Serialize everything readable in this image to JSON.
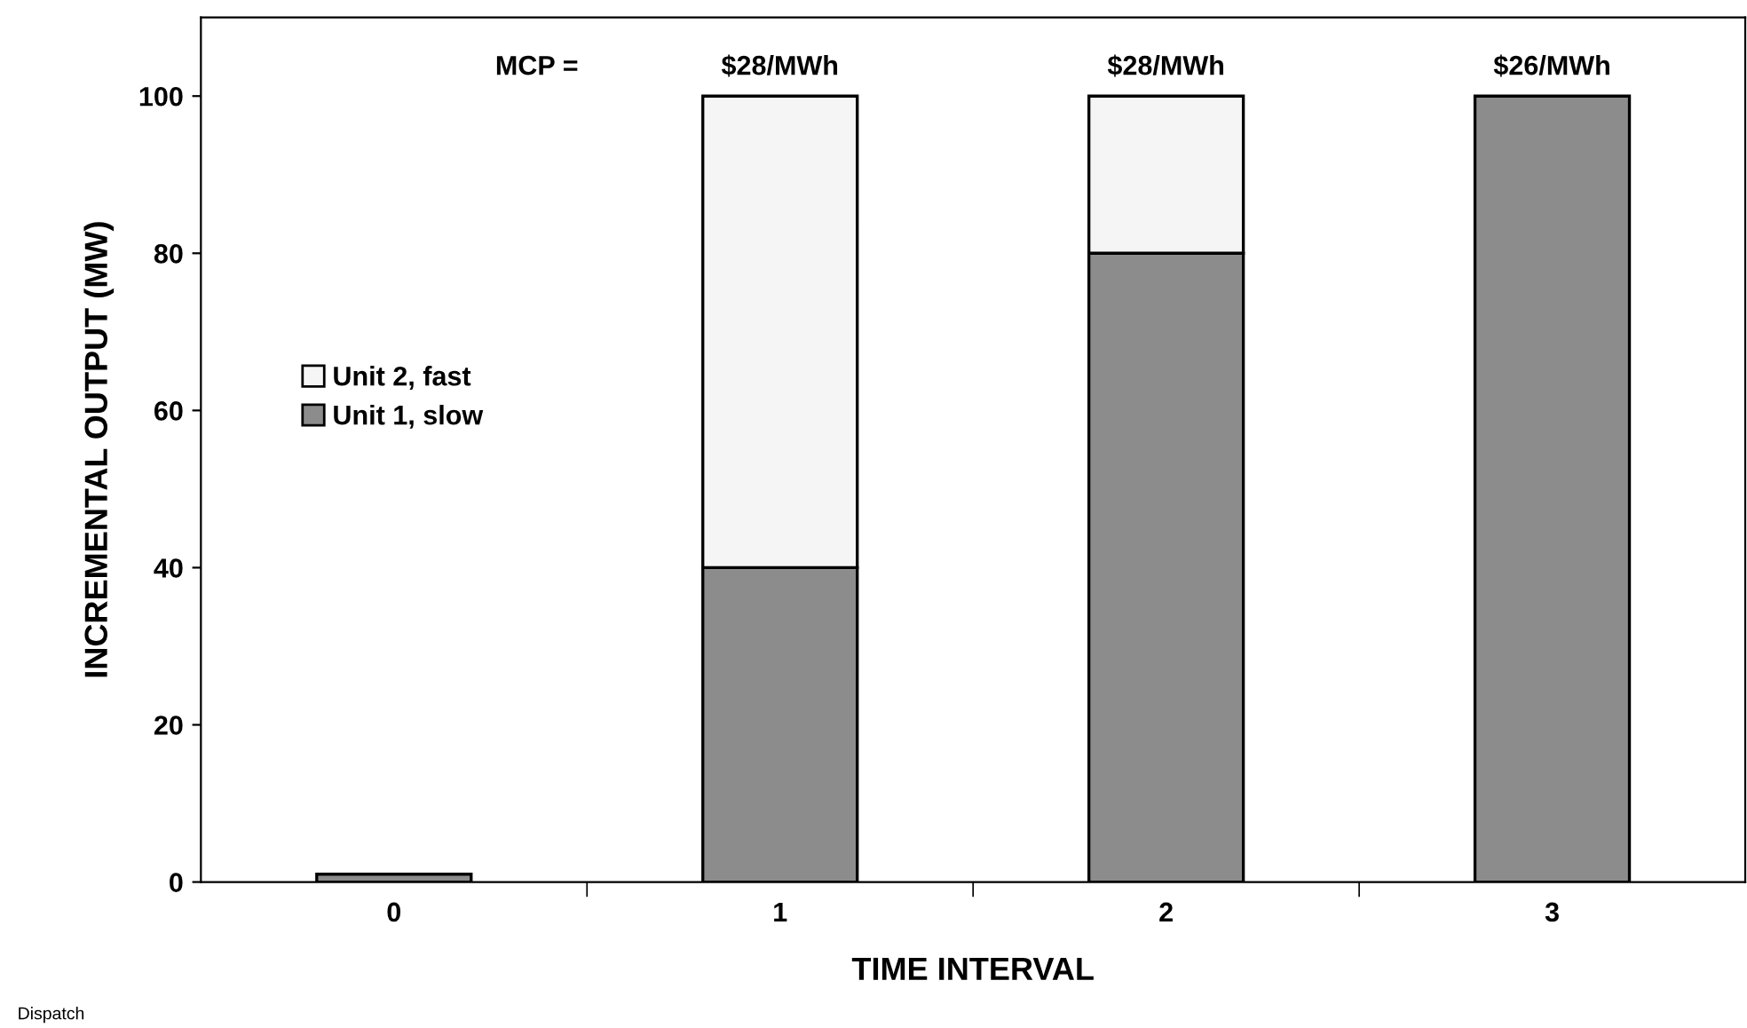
{
  "chart_data": {
    "type": "bar",
    "stacked": true,
    "xlabel": "TIME INTERVAL",
    "ylabel": "INCREMENTAL OUTPUT (MW)",
    "categories": [
      "0",
      "1",
      "2",
      "3"
    ],
    "series": [
      {
        "name": "Unit 1, slow",
        "color": "#8c8c8c",
        "values": [
          1,
          40,
          80,
          100
        ]
      },
      {
        "name": "Unit 2, fast",
        "color": "#f5f5f5",
        "values": [
          null,
          60,
          20,
          null
        ]
      }
    ],
    "ylim": [
      0,
      110
    ],
    "yticks": [
      0,
      20,
      40,
      60,
      80,
      100
    ],
    "grid": false,
    "legend": "left",
    "annotations": [
      "MCP =",
      {
        "text": "$28/MWh",
        "x": "1",
        "y": 100
      },
      {
        "text": "$28/MWh",
        "x": "2",
        "y": 100
      },
      {
        "text": "$26/MWh",
        "x": "3",
        "y": 100
      },
      "Dispatch"
    ]
  }
}
